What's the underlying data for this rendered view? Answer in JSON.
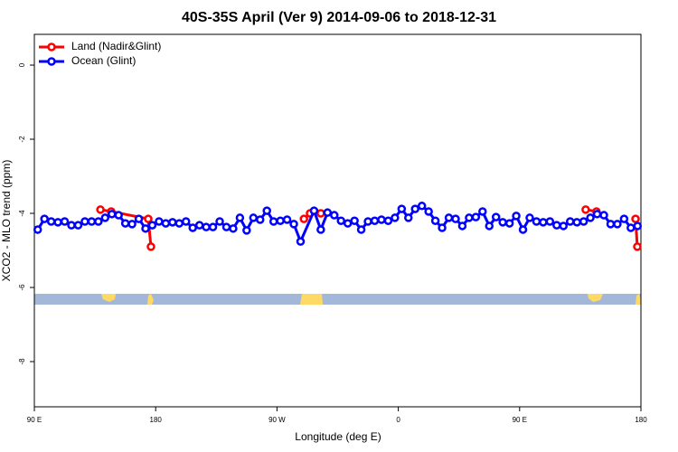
{
  "chart_data": {
    "type": "line",
    "title": "40S-35S April (Ver 9)   2014-09-06 to 2018-12-31",
    "x_label": "Longitude (deg E)",
    "y_label": "XCO2 - MLO trend (ppm)",
    "xlim": [
      90,
      540
    ],
    "ylim": [
      -9.22,
      0.83
    ],
    "xticks": [
      {
        "value": 90,
        "label": "90 E"
      },
      180,
      {
        "value": 270,
        "label": "90 W"
      },
      {
        "value": 360,
        "label": "0"
      },
      {
        "value": 450,
        "label": "90 E"
      },
      {
        "value": 540,
        "label": "180"
      }
    ],
    "yticks": [
      0,
      -2,
      -4,
      -6,
      -8
    ],
    "legend": "upper left",
    "series": [
      {
        "name": "Land (Nadir&Glint)",
        "color": "#ff0000",
        "x": [
          139,
          147,
          174.5,
          176.5,
          null,
          290,
          294.5,
          302.5,
          null,
          499,
          507,
          null,
          536,
          537.3
        ],
        "values": [
          -3.9,
          -3.95,
          -4.15,
          -4.9,
          null,
          -4.15,
          -4.0,
          -4.0,
          null,
          -3.9,
          -3.95,
          null,
          -4.15,
          -4.9
        ]
      },
      {
        "name": "Ocean (Glint)",
        "color": "#0000ff",
        "x": [
          92.5,
          97.5,
          102.5,
          107.5,
          112.5,
          117.5,
          122.5,
          127.5,
          132.5,
          137.5,
          142.5,
          147.5,
          152.5,
          157.5,
          162.5,
          167.5,
          172.5,
          177.5,
          182.5,
          187.5,
          192.5,
          197.5,
          202.5,
          207.5,
          212.5,
          217.5,
          222.5,
          227.5,
          232.5,
          237.5,
          242.5,
          247.5,
          252.5,
          257.5,
          262.5,
          267.5,
          272.5,
          277.5,
          282.5,
          287.5,
          297.5,
          302.5,
          307.5,
          312.5,
          317.5,
          322.5,
          327.5,
          332.5,
          337.5,
          342.5,
          347.5,
          352.5,
          357.5,
          362.5,
          367.5,
          372.5,
          377.5,
          382.5,
          387.5,
          392.5,
          397.5,
          402.5,
          407.5,
          412.5,
          417.5,
          422.5,
          427.5,
          432.5,
          437.5,
          442.5,
          447.5,
          452.5,
          457.5,
          462.5,
          467.5,
          472.5,
          477.5,
          482.5,
          487.5,
          492.5,
          497.5,
          502.5,
          507.5,
          512.5,
          517.5,
          522.5,
          527.5,
          532.5,
          537.5
        ],
        "values": [
          -4.44,
          -4.15,
          -4.22,
          -4.24,
          -4.22,
          -4.32,
          -4.32,
          -4.22,
          -4.22,
          -4.22,
          -4.12,
          -4.02,
          -4.05,
          -4.27,
          -4.29,
          -4.15,
          -4.41,
          -4.32,
          -4.22,
          -4.27,
          -4.24,
          -4.27,
          -4.22,
          -4.39,
          -4.32,
          -4.37,
          -4.37,
          -4.22,
          -4.37,
          -4.41,
          -4.12,
          -4.46,
          -4.12,
          -4.17,
          -3.93,
          -4.22,
          -4.2,
          -4.17,
          -4.29,
          -4.76,
          -3.93,
          -4.44,
          -3.98,
          -4.05,
          -4.2,
          -4.27,
          -4.2,
          -4.44,
          -4.22,
          -4.2,
          -4.17,
          -4.2,
          -4.12,
          -3.88,
          -4.12,
          -3.88,
          -3.8,
          -3.95,
          -4.2,
          -4.39,
          -4.12,
          -4.15,
          -4.34,
          -4.12,
          -4.1,
          -3.95,
          -4.34,
          -4.1,
          -4.24,
          -4.27,
          -4.07,
          -4.44,
          -4.12,
          -4.22,
          -4.24,
          -4.22,
          -4.32,
          -4.34,
          -4.22,
          -4.24,
          -4.22,
          -4.12,
          -4.02,
          -4.05,
          -4.29,
          -4.29,
          -4.15,
          -4.39,
          -4.34
        ]
      }
    ]
  }
}
